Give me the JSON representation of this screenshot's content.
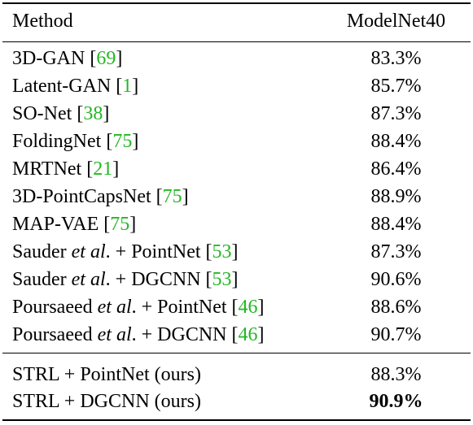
{
  "table": {
    "header": {
      "method": "Method",
      "dataset": "ModelNet40"
    },
    "rows": [
      {
        "name": "3D-GAN",
        "em": "",
        "suffix": "",
        "cite": "69",
        "value": "83.3%"
      },
      {
        "name": "Latent-GAN",
        "em": "",
        "suffix": "",
        "cite": "1",
        "value": "85.7%"
      },
      {
        "name": "SO-Net",
        "em": "",
        "suffix": "",
        "cite": "38",
        "value": "87.3%"
      },
      {
        "name": "FoldingNet",
        "em": "",
        "suffix": "",
        "cite": "75",
        "value": "88.4%"
      },
      {
        "name": "MRTNet",
        "em": "",
        "suffix": "",
        "cite": "21",
        "value": "86.4%"
      },
      {
        "name": "3D-PointCapsNet",
        "em": "",
        "suffix": "",
        "cite": "75",
        "value": "88.9%"
      },
      {
        "name": "MAP-VAE",
        "em": "",
        "suffix": "",
        "cite": "75",
        "value": "88.4%"
      },
      {
        "name": "Sauder",
        "em": "et al",
        "suffix": ". + PointNet",
        "cite": "53",
        "value": "87.3%"
      },
      {
        "name": "Sauder",
        "em": "et al",
        "suffix": ". + DGCNN",
        "cite": "53",
        "value": "90.6%"
      },
      {
        "name": "Poursaeed",
        "em": "et al",
        "suffix": ". + PointNet",
        "cite": "46",
        "value": "88.6%"
      },
      {
        "name": "Poursaeed",
        "em": "et al",
        "suffix": ". + DGCNN",
        "cite": "46",
        "value": "90.7%"
      }
    ],
    "ours": [
      {
        "name": "STRL + PointNet (ours)",
        "value": "88.3%",
        "bold": false
      },
      {
        "name": "STRL + DGCNN (ours)",
        "value": "90.9%",
        "bold": true
      }
    ]
  }
}
